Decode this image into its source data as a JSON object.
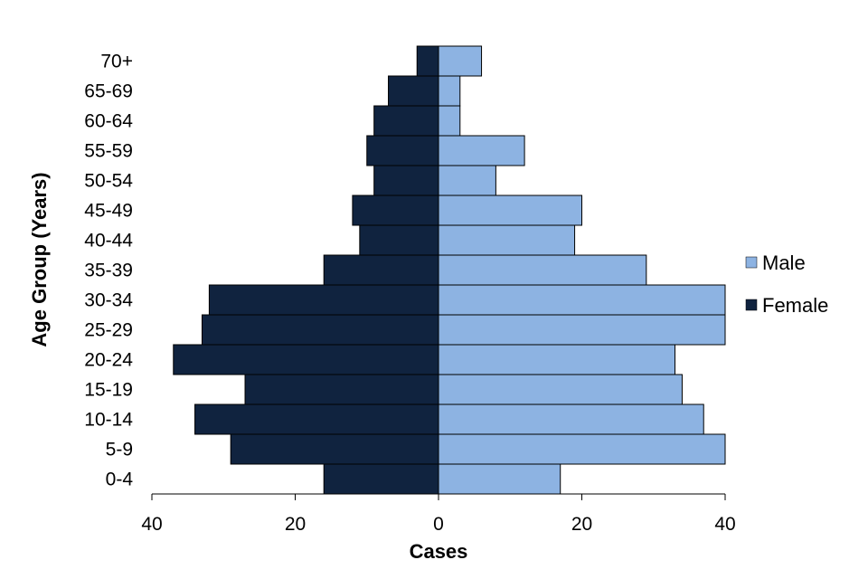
{
  "chart_data": {
    "type": "bar",
    "orientation": "horizontal-population-pyramid",
    "title": "",
    "xlabel": "Cases",
    "ylabel": "Age Group (Years)",
    "categories": [
      "0-4",
      "5-9",
      "10-14",
      "15-19",
      "20-24",
      "25-29",
      "30-34",
      "35-39",
      "40-44",
      "45-49",
      "50-54",
      "55-59",
      "60-64",
      "65-69",
      "70+"
    ],
    "series": [
      {
        "name": "Male",
        "color": "#8db3e2",
        "side": "right",
        "values": [
          17,
          40,
          37,
          34,
          33,
          40,
          40,
          29,
          19,
          20,
          8,
          12,
          3,
          3,
          6
        ]
      },
      {
        "name": "Female",
        "color": "#10233f",
        "side": "left",
        "values": [
          16,
          29,
          34,
          27,
          37,
          33,
          32,
          16,
          11,
          12,
          9,
          10,
          9,
          7,
          3
        ]
      }
    ],
    "xlim": [
      -40,
      40
    ],
    "xticks": [
      {
        "value": -40,
        "label": "40"
      },
      {
        "value": -20,
        "label": "20"
      },
      {
        "value": 0,
        "label": "0"
      },
      {
        "value": 20,
        "label": "20"
      },
      {
        "value": 40,
        "label": "40"
      }
    ],
    "grid": false,
    "legend": {
      "position": "right",
      "order": [
        "Male",
        "Female"
      ]
    }
  }
}
